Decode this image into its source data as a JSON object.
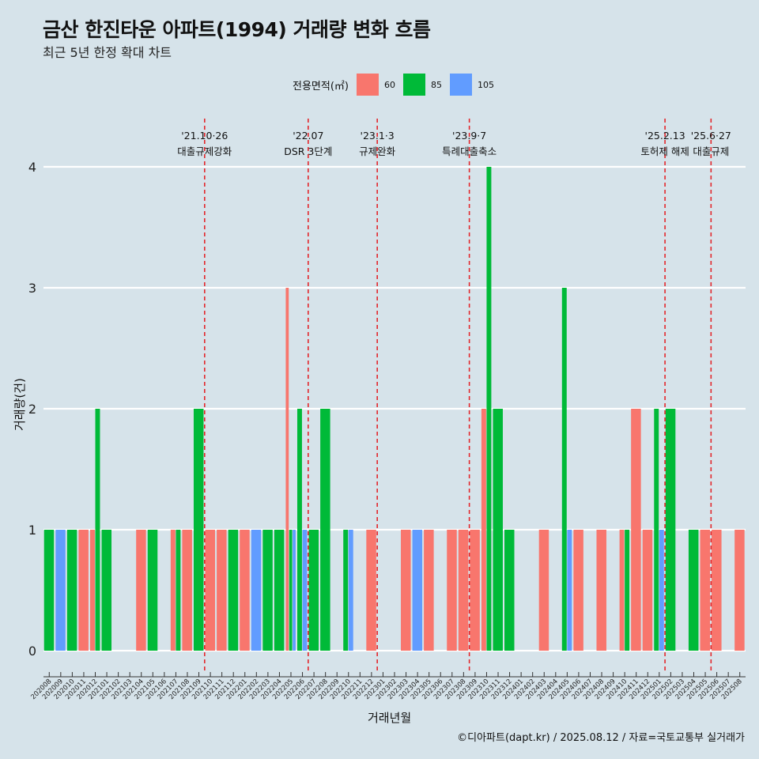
{
  "title": "금산 한진타운 아파트(1994) 거래량 변화 흐름",
  "subtitle": "최근 5년 한정 확대 차트",
  "caption": "©디아파트(dapt.kr) / 2025.08.12 / 자료=국토교통부 실거래가",
  "legend": {
    "title": "전용면적(㎡)",
    "items": [
      {
        "label": "60",
        "color": "#F8766D"
      },
      {
        "label": "85",
        "color": "#00BA38"
      },
      {
        "label": "105",
        "color": "#619CFF"
      }
    ]
  },
  "chart_data": {
    "type": "bar",
    "xlabel": "거래년월",
    "ylabel": "거래량(건)",
    "ylim": [
      0,
      4
    ],
    "yticks": [
      0,
      1,
      2,
      3,
      4
    ],
    "grid": true,
    "legend_position": "top",
    "categories": [
      "202008",
      "202009",
      "202010",
      "202011",
      "202012",
      "202101",
      "202102",
      "202103",
      "202104",
      "202105",
      "202106",
      "202107",
      "202108",
      "202109",
      "202110",
      "202111",
      "202112",
      "202201",
      "202202",
      "202203",
      "202204",
      "202205",
      "202206",
      "202207",
      "202208",
      "202209",
      "202210",
      "202211",
      "202212",
      "202301",
      "202302",
      "202303",
      "202304",
      "202305",
      "202306",
      "202307",
      "202308",
      "202309",
      "202310",
      "202311",
      "202312",
      "202401",
      "202402",
      "202403",
      "202404",
      "202405",
      "202406",
      "202407",
      "202408",
      "202409",
      "202410",
      "202411",
      "202412",
      "202501",
      "202502",
      "202503",
      "202504",
      "202505",
      "202506",
      "202507",
      "202508"
    ],
    "series": [
      {
        "name": "60",
        "color": "#F8766D",
        "points": [
          {
            "x": "202011",
            "y": 1
          },
          {
            "x": "202012",
            "y": 1
          },
          {
            "x": "202104",
            "y": 1
          },
          {
            "x": "202107",
            "y": 1
          },
          {
            "x": "202108",
            "y": 1
          },
          {
            "x": "202110",
            "y": 1
          },
          {
            "x": "202111",
            "y": 1
          },
          {
            "x": "202201",
            "y": 1
          },
          {
            "x": "202205",
            "y": 3
          },
          {
            "x": "202212",
            "y": 1
          },
          {
            "x": "202303",
            "y": 1
          },
          {
            "x": "202305",
            "y": 1
          },
          {
            "x": "202307",
            "y": 1
          },
          {
            "x": "202308",
            "y": 1
          },
          {
            "x": "202309",
            "y": 1
          },
          {
            "x": "202310",
            "y": 2
          },
          {
            "x": "202403",
            "y": 1
          },
          {
            "x": "202406",
            "y": 1
          },
          {
            "x": "202408",
            "y": 1
          },
          {
            "x": "202410",
            "y": 1
          },
          {
            "x": "202411",
            "y": 2
          },
          {
            "x": "202412",
            "y": 1
          },
          {
            "x": "202505",
            "y": 1
          },
          {
            "x": "202506",
            "y": 1
          },
          {
            "x": "202508",
            "y": 1
          }
        ]
      },
      {
        "name": "85",
        "color": "#00BA38",
        "points": [
          {
            "x": "202008",
            "y": 1
          },
          {
            "x": "202010",
            "y": 1
          },
          {
            "x": "202012",
            "y": 2
          },
          {
            "x": "202101",
            "y": 1
          },
          {
            "x": "202105",
            "y": 1
          },
          {
            "x": "202107",
            "y": 1
          },
          {
            "x": "202109",
            "y": 2
          },
          {
            "x": "202112",
            "y": 1
          },
          {
            "x": "202203",
            "y": 1
          },
          {
            "x": "202204",
            "y": 1
          },
          {
            "x": "202205",
            "y": 1
          },
          {
            "x": "202206",
            "y": 2
          },
          {
            "x": "202207",
            "y": 1
          },
          {
            "x": "202208",
            "y": 2
          },
          {
            "x": "202210",
            "y": 1
          },
          {
            "x": "202310",
            "y": 4
          },
          {
            "x": "202311",
            "y": 2
          },
          {
            "x": "202312",
            "y": 1
          },
          {
            "x": "202405",
            "y": 3
          },
          {
            "x": "202410",
            "y": 1
          },
          {
            "x": "202501",
            "y": 2
          },
          {
            "x": "202502",
            "y": 2
          },
          {
            "x": "202504",
            "y": 1
          }
        ]
      },
      {
        "name": "105",
        "color": "#619CFF",
        "points": [
          {
            "x": "202009",
            "y": 1
          },
          {
            "x": "202202",
            "y": 1
          },
          {
            "x": "202205",
            "y": 1
          },
          {
            "x": "202206",
            "y": 1
          },
          {
            "x": "202210",
            "y": 1
          },
          {
            "x": "202304",
            "y": 1
          },
          {
            "x": "202405",
            "y": 1
          },
          {
            "x": "202501",
            "y": 1
          }
        ]
      }
    ],
    "annotations": [
      {
        "x": "202110",
        "date": "'21.10·26",
        "label": "대출규제강화"
      },
      {
        "x": "202207",
        "date": "'22.07",
        "label": "DSR 3단계"
      },
      {
        "x": "202301",
        "date": "'23.1·3",
        "label": "규제완화"
      },
      {
        "x": "202309",
        "date": "'23.9·7",
        "label": "특례대출축소"
      },
      {
        "x": "202502",
        "date": "'25.2.13",
        "label": "토허제 해제"
      },
      {
        "x": "202506",
        "date": "'25.6·27",
        "label": "대출규제"
      }
    ]
  }
}
